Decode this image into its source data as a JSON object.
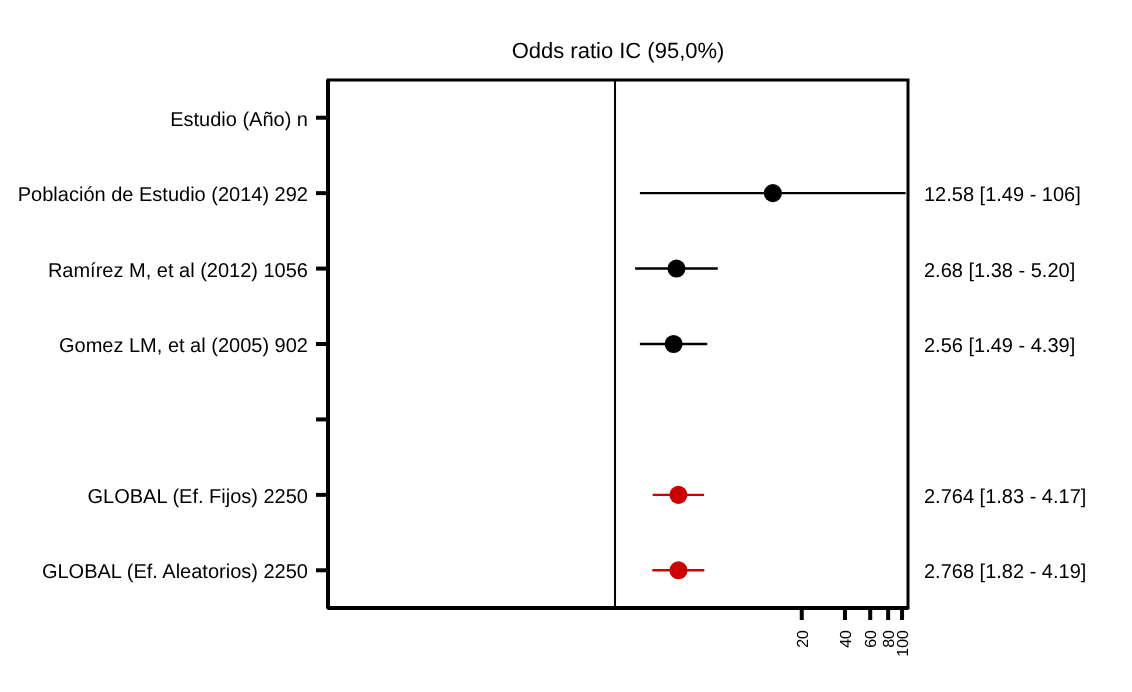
{
  "chart_data": {
    "type": "scatter",
    "orientation": "horizontal",
    "title": "Odds ratio IC  (95,0%)",
    "categories": [
      "Estudio  (Año)  n",
      "Población de Estudio (2014)  292",
      "Ramírez M, et al (2012)  1056",
      "Gomez LM, et al (2005)  902",
      null,
      "GLOBAL (Ef. Fijos)  2250",
      "GLOBAL (Ef. Aleatorios)  2250"
    ],
    "series": [
      {
        "color": "#000000",
        "values": [
          null,
          12.58,
          2.68,
          2.56,
          null,
          null,
          null
        ],
        "errors": [
          null,
          [
            1.49,
            106
          ],
          [
            1.38,
            5.2
          ],
          [
            1.49,
            4.39
          ],
          null,
          null,
          null
        ],
        "value_labels": [
          null,
          "12.58 [1.49 - 106]",
          "2.68 [1.38 - 5.20]",
          "2.56 [1.49 - 4.39]",
          null,
          null,
          null
        ]
      },
      {
        "color": "#cc0000",
        "values": [
          null,
          null,
          null,
          null,
          null,
          2.764,
          2.768
        ],
        "errors": [
          null,
          null,
          null,
          null,
          null,
          [
            1.83,
            4.17
          ],
          [
            1.82,
            4.19
          ]
        ],
        "value_labels": [
          null,
          null,
          null,
          null,
          null,
          "2.764 [1.83 - 4.17]",
          "2.768 [1.82 - 4.19]"
        ]
      }
    ],
    "xlim": [
      0.01,
      110
    ],
    "xticks": [
      20,
      40,
      60,
      80,
      100
    ],
    "log": "x",
    "marker": "circle",
    "grid": false,
    "legend": false,
    "ref_lines": [
      {
        "axis": "x",
        "value": 1,
        "color": "#000000"
      }
    ]
  }
}
